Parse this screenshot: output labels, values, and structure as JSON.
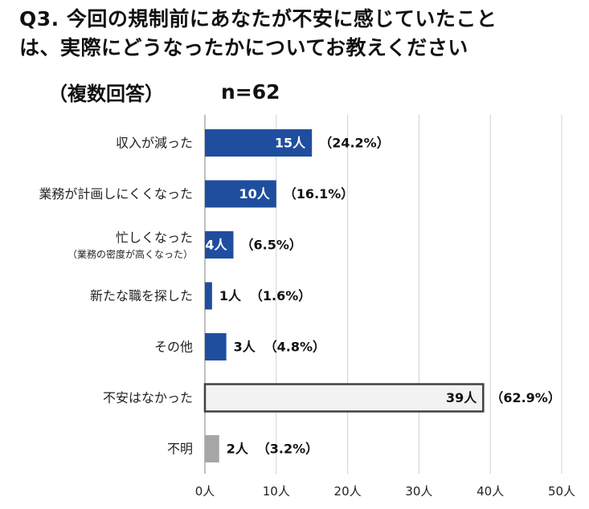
{
  "header": {
    "title_line1": "Q3. 今回の規制前にあなたが不安に感じていたこと",
    "title_line2": "は、実際にどうなったかについてお教えください",
    "subtitle": "（複数回答）",
    "sample_size": "n=62"
  },
  "chart_data": {
    "type": "bar",
    "orientation": "horizontal",
    "categories": [
      {
        "label": "収入が減った",
        "sublabel": ""
      },
      {
        "label": "業務が計画しにくくなった",
        "sublabel": ""
      },
      {
        "label": "忙しくなった",
        "sublabel": "（業務の密度が高くなった）"
      },
      {
        "label": "新たな職を探した",
        "sublabel": ""
      },
      {
        "label": "その他",
        "sublabel": ""
      },
      {
        "label": "不安はなかった",
        "sublabel": ""
      },
      {
        "label": "不明",
        "sublabel": ""
      }
    ],
    "values": [
      15,
      10,
      4,
      1,
      3,
      39,
      2
    ],
    "value_labels": [
      "15人",
      "10人",
      "4人",
      "1人",
      "3人",
      "39人",
      "2人"
    ],
    "percent_labels": [
      "（24.2%）",
      "（16.1%）",
      "（6.5%）",
      "（1.6%）",
      "（4.8%）",
      "（62.9%）",
      "（3.2%）"
    ],
    "bar_styles": [
      "blue",
      "blue",
      "blue",
      "blue",
      "blue",
      "outlined",
      "gray"
    ],
    "value_label_inside": [
      true,
      true,
      true,
      false,
      false,
      true,
      false
    ],
    "xlim": [
      0,
      50
    ],
    "x_ticks": [
      0,
      10,
      20,
      30,
      40,
      50
    ],
    "x_tick_labels": [
      "0人",
      "10人",
      "20人",
      "30人",
      "40人",
      "50人"
    ],
    "grid": true,
    "colors": {
      "blue": "#1f4e9f",
      "gray": "#a6a6a6",
      "outlined_fill": "#f2f2f2",
      "outlined_stroke": "#404040",
      "grid": "#d0d0d0"
    }
  }
}
